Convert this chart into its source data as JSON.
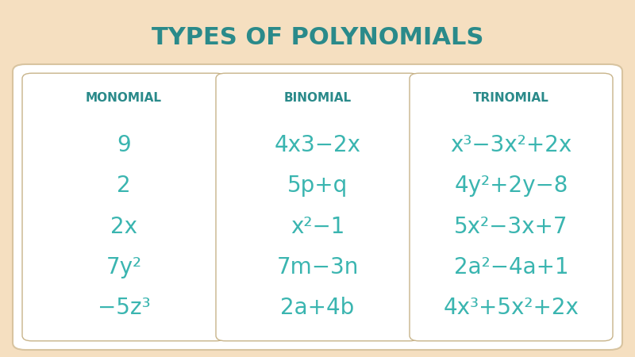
{
  "title": "TYPES OF POLYNOMIALS",
  "title_color": "#2a8a8a",
  "title_fontsize": 22,
  "background_color": "#f5dfc0",
  "card_color": "#ffffff",
  "text_color": "#3ab5b0",
  "header_color": "#2a8a8a",
  "columns": [
    {
      "header": "MONOMIAL",
      "items": [
        "9",
        "2",
        "2x",
        "7y²",
        "−5z³"
      ]
    },
    {
      "header": "BINOMIAL",
      "items": [
        "4x3−2x",
        "5p+q",
        "x²−1",
        "7m−3n",
        "2a+4b"
      ]
    },
    {
      "header": "TRINOMIAL",
      "items": [
        "x³−3x²+2x",
        "4y²+2y−8",
        "5x²−3x+7",
        "2a²−4a+1",
        "4x³+5x²+2x"
      ]
    }
  ],
  "header_fontsize": 11,
  "item_fontsize": 20,
  "fig_width": 8.0,
  "fig_height": 4.5,
  "dpi": 100
}
